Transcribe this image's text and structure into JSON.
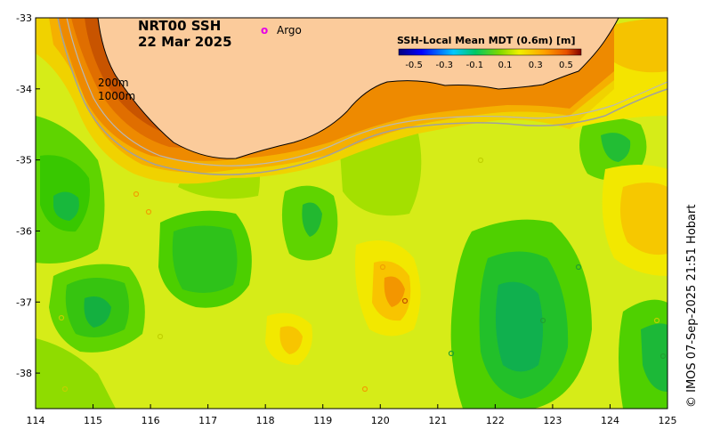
{
  "title": "NRT00 SSH",
  "date": "22 Mar 2025",
  "legend": {
    "marker": "o",
    "label": "Argo"
  },
  "contours": [
    "200m",
    "1000m"
  ],
  "colorbar": {
    "title": "SSH-Local Mean MDT (0.6m) [m]",
    "ticks": [
      "-0.5",
      "-0.3",
      "-0.1",
      "0.1",
      "0.3",
      "0.5"
    ],
    "range": [
      -0.6,
      0.6
    ]
  },
  "axes": {
    "x_ticks": [
      "114",
      "115",
      "116",
      "117",
      "118",
      "119",
      "120",
      "121",
      "122",
      "123",
      "124",
      "125"
    ],
    "y_ticks": [
      "-33",
      "-34",
      "-35",
      "-36",
      "-37",
      "-38"
    ],
    "lon_range": [
      114,
      125
    ],
    "lat_range": [
      -38.5,
      -33
    ]
  },
  "credit": "© IMOS 07-Sep-2025 21:51 Hobart",
  "colors": {
    "land": "#fbcb9b",
    "argo": "#e600e6"
  }
}
